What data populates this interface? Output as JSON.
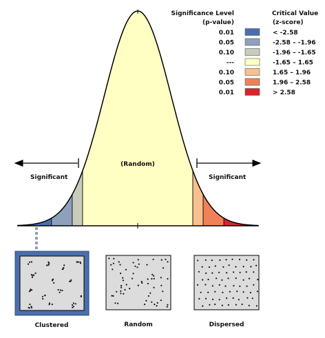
{
  "legend": {
    "sig_header_line1": "Significance Level",
    "sig_header_line2": "(p-value)",
    "crit_header_line1": "Critical Value",
    "crit_header_line2": "(z-score)",
    "rows": [
      {
        "p": "0.01",
        "z": "< -2.58",
        "color": "#4a6fae"
      },
      {
        "p": "0.05",
        "z": "-2.58 – -1.96",
        "color": "#8fa0bd"
      },
      {
        "p": "0.10",
        "z": "-1.96 – -1.65",
        "color": "#c7ccbc"
      },
      {
        "p": "---",
        "z": "-1.65 – 1.65",
        "color": "#ffffc4"
      },
      {
        "p": "0.10",
        "z": "1.65 – 1.96",
        "color": "#f8c08f"
      },
      {
        "p": "0.05",
        "z": "1.96 – 2.58",
        "color": "#f08157"
      },
      {
        "p": "0.01",
        "z": "> 2.58",
        "color": "#d7262b"
      }
    ]
  },
  "labels": {
    "random_center": "(Random)",
    "significant_left": "Significant",
    "significant_right": "Significant"
  },
  "curve": {
    "region_boundaries_z": [
      -2.58,
      -1.96,
      -1.65,
      1.65,
      1.96,
      2.58
    ]
  },
  "patterns": [
    {
      "label": "Clustered",
      "highlighted": true,
      "highlight_color": "#4a6fae"
    },
    {
      "label": "Random",
      "highlighted": false
    },
    {
      "label": "Dispersed",
      "highlighted": false
    }
  ]
}
